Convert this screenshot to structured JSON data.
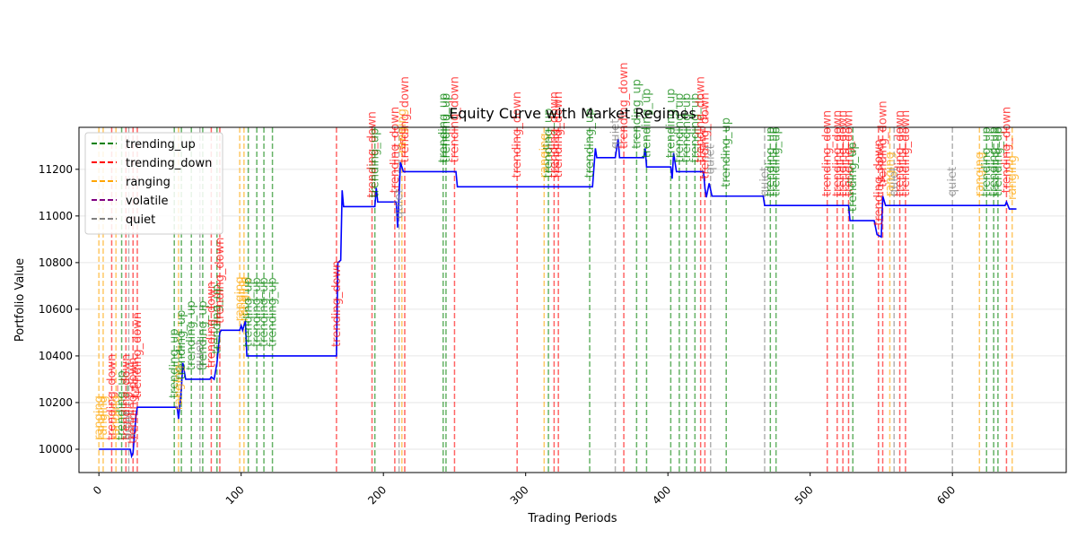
{
  "chart_data": {
    "type": "line",
    "title": "Equity Curve with Market Regimes",
    "xlabel": "Trading Periods",
    "ylabel": "Portfolio Value",
    "xlim": [
      -14,
      680
    ],
    "ylim": [
      9900,
      11380
    ],
    "xticks": [
      0,
      100,
      200,
      300,
      400,
      500,
      600
    ],
    "yticks": [
      10000,
      10200,
      10400,
      10600,
      10800,
      11000,
      11200
    ],
    "grid": true,
    "legend_position": "upper-left",
    "series": [
      {
        "color": "#0000ff",
        "points": [
          [
            0,
            10000
          ],
          [
            22,
            10000
          ],
          [
            23,
            9970
          ],
          [
            24,
            9985
          ],
          [
            26,
            10140
          ],
          [
            27,
            10180
          ],
          [
            55,
            10180
          ],
          [
            56,
            10130
          ],
          [
            58,
            10260
          ],
          [
            59,
            10370
          ],
          [
            61,
            10300
          ],
          [
            78,
            10300
          ],
          [
            79,
            10310
          ],
          [
            81,
            10300
          ],
          [
            83,
            10370
          ],
          [
            85,
            10500
          ],
          [
            86,
            10510
          ],
          [
            99,
            10510
          ],
          [
            100,
            10530
          ],
          [
            101,
            10510
          ],
          [
            103,
            10550
          ],
          [
            104,
            10400
          ],
          [
            167,
            10400
          ],
          [
            168,
            10800
          ],
          [
            170,
            10810
          ],
          [
            171,
            11110
          ],
          [
            172,
            11040
          ],
          [
            194,
            11040
          ],
          [
            195,
            11120
          ],
          [
            196,
            11060
          ],
          [
            209,
            11060
          ],
          [
            210,
            10950
          ],
          [
            212,
            11230
          ],
          [
            214,
            11190
          ],
          [
            251,
            11190
          ],
          [
            252,
            11125
          ],
          [
            347,
            11125
          ],
          [
            349,
            11290
          ],
          [
            350,
            11250
          ],
          [
            363,
            11250
          ],
          [
            365,
            11330
          ],
          [
            366,
            11250
          ],
          [
            383,
            11250
          ],
          [
            384,
            11290
          ],
          [
            385,
            11210
          ],
          [
            402,
            11210
          ],
          [
            403,
            11160
          ],
          [
            404,
            11270
          ],
          [
            406,
            11190
          ],
          [
            425,
            11190
          ],
          [
            426,
            11120
          ],
          [
            427,
            11080
          ],
          [
            429,
            11140
          ],
          [
            431,
            11085
          ],
          [
            467,
            11085
          ],
          [
            468,
            11045
          ],
          [
            527,
            11045
          ],
          [
            528,
            10980
          ],
          [
            545,
            10980
          ],
          [
            547,
            10920
          ],
          [
            550,
            10910
          ],
          [
            551,
            11085
          ],
          [
            553,
            11045
          ],
          [
            637,
            11045
          ],
          [
            638,
            11060
          ],
          [
            640,
            11030
          ],
          [
            645,
            11030
          ]
        ]
      }
    ],
    "regimes": [
      {
        "x": 0,
        "type": "ranging"
      },
      {
        "x": 3,
        "type": "ranging"
      },
      {
        "x": 9,
        "type": "trending_down"
      },
      {
        "x": 12,
        "type": "ranging"
      },
      {
        "x": 16,
        "type": "trending_up"
      },
      {
        "x": 19,
        "type": "trending_down"
      },
      {
        "x": 21,
        "type": "quiet"
      },
      {
        "x": 24,
        "type": "trending_down"
      },
      {
        "x": 27,
        "type": "trending_down"
      },
      {
        "x": 53,
        "type": "trending_up"
      },
      {
        "x": 56,
        "type": "ranging"
      },
      {
        "x": 58,
        "type": "trending_up"
      },
      {
        "x": 65,
        "type": "trending_up"
      },
      {
        "x": 71,
        "type": "quiet"
      },
      {
        "x": 73,
        "type": "trending_up"
      },
      {
        "x": 79,
        "type": "trending_down"
      },
      {
        "x": 83,
        "type": "trending_up"
      },
      {
        "x": 85,
        "type": "trending_down"
      },
      {
        "x": 99,
        "type": "ranging"
      },
      {
        "x": 102,
        "type": "ranging"
      },
      {
        "x": 105,
        "type": "trending_up"
      },
      {
        "x": 111,
        "type": "trending_up"
      },
      {
        "x": 116,
        "type": "trending_up"
      },
      {
        "x": 122,
        "type": "trending_up"
      },
      {
        "x": 167,
        "type": "trending_down"
      },
      {
        "x": 192,
        "type": "trending_down"
      },
      {
        "x": 194,
        "type": "trending_up"
      },
      {
        "x": 208,
        "type": "trending_down"
      },
      {
        "x": 211,
        "type": "quiet"
      },
      {
        "x": 213,
        "type": "ranging"
      },
      {
        "x": 215,
        "type": "trending_down"
      },
      {
        "x": 242,
        "type": "trending_up"
      },
      {
        "x": 244,
        "type": "trending_up"
      },
      {
        "x": 250,
        "type": "trending_down"
      },
      {
        "x": 294,
        "type": "trending_down"
      },
      {
        "x": 313,
        "type": "ranging"
      },
      {
        "x": 316,
        "type": "trending_up"
      },
      {
        "x": 320,
        "type": "trending_down"
      },
      {
        "x": 323,
        "type": "trending_down"
      },
      {
        "x": 345,
        "type": "trending_up"
      },
      {
        "x": 363,
        "type": "quiet"
      },
      {
        "x": 369,
        "type": "trending_down"
      },
      {
        "x": 378,
        "type": "trending_up"
      },
      {
        "x": 385,
        "type": "trending_up"
      },
      {
        "x": 402,
        "type": "trending_up"
      },
      {
        "x": 408,
        "type": "trending_up"
      },
      {
        "x": 413,
        "type": "trending_up"
      },
      {
        "x": 419,
        "type": "trending_up"
      },
      {
        "x": 423,
        "type": "trending_down"
      },
      {
        "x": 426,
        "type": "trending_down"
      },
      {
        "x": 430,
        "type": "quiet"
      },
      {
        "x": 441,
        "type": "trending_up"
      },
      {
        "x": 468,
        "type": "quiet"
      },
      {
        "x": 472,
        "type": "trending_up"
      },
      {
        "x": 476,
        "type": "trending_up"
      },
      {
        "x": 512,
        "type": "trending_down"
      },
      {
        "x": 519,
        "type": "trending_down"
      },
      {
        "x": 523,
        "type": "trending_down"
      },
      {
        "x": 527,
        "type": "trending_down"
      },
      {
        "x": 530,
        "type": "trending_up"
      },
      {
        "x": 548,
        "type": "trending_down"
      },
      {
        "x": 551,
        "type": "trending_down"
      },
      {
        "x": 556,
        "type": "ranging"
      },
      {
        "x": 559,
        "type": "quiet"
      },
      {
        "x": 563,
        "type": "trending_down"
      },
      {
        "x": 567,
        "type": "trending_down"
      },
      {
        "x": 600,
        "type": "quiet"
      },
      {
        "x": 619,
        "type": "ranging"
      },
      {
        "x": 624,
        "type": "trending_up"
      },
      {
        "x": 629,
        "type": "trending_up"
      },
      {
        "x": 632,
        "type": "trending_up"
      },
      {
        "x": 638,
        "type": "trending_down"
      },
      {
        "x": 642,
        "type": "ranging"
      }
    ],
    "regime_colors": {
      "trending_up": "#008000",
      "trending_down": "#ff0000",
      "ranging": "#ffa500",
      "volatile": "#800080",
      "quiet": "#808080"
    },
    "legend": [
      {
        "key": "trending_up",
        "label": "trending_up"
      },
      {
        "key": "trending_down",
        "label": "trending_down"
      },
      {
        "key": "ranging",
        "label": "ranging"
      },
      {
        "key": "volatile",
        "label": "volatile"
      },
      {
        "key": "quiet",
        "label": "quiet"
      }
    ]
  }
}
